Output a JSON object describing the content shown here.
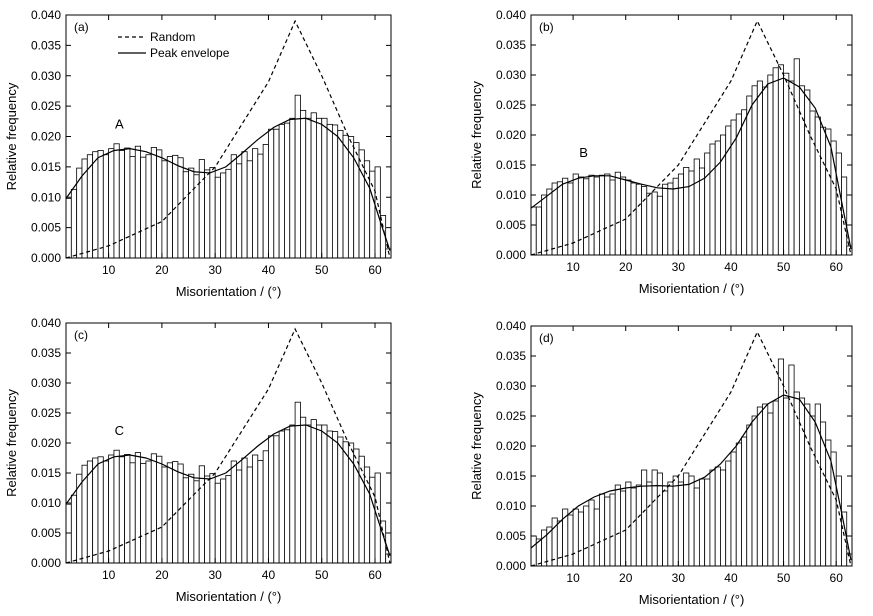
{
  "chart_data": [
    {
      "panel_label": "(a)",
      "type": "bar",
      "xlabel": "Misorientation / (°)",
      "ylabel": "Relative frequency",
      "xlim": [
        2,
        63
      ],
      "ylim": [
        0,
        0.04
      ],
      "xticks": [
        10,
        20,
        30,
        40,
        50,
        60
      ],
      "yticks": [
        "0.000",
        "0.005",
        "0.010",
        "0.015",
        "0.020",
        "0.025",
        "0.030",
        "0.035",
        "0.040"
      ],
      "annotation": {
        "text": "A",
        "x": 12,
        "y": 0.0213
      },
      "legend": {
        "placement": "top-left",
        "entries": [
          {
            "label": "Random",
            "style": "dashed"
          },
          {
            "label": "Peak envelope",
            "style": "solid"
          }
        ]
      },
      "bin_width": 1,
      "bin_start": 2.5,
      "values": [
        0.0098,
        0.0113,
        0.0148,
        0.0163,
        0.017,
        0.0175,
        0.0177,
        0.017,
        0.018,
        0.0188,
        0.0177,
        0.0181,
        0.0167,
        0.0184,
        0.0166,
        0.017,
        0.0182,
        0.0178,
        0.016,
        0.0167,
        0.0169,
        0.0165,
        0.0142,
        0.0148,
        0.0137,
        0.0162,
        0.0145,
        0.0149,
        0.0133,
        0.014,
        0.0146,
        0.017,
        0.0155,
        0.0175,
        0.016,
        0.018,
        0.0171,
        0.0187,
        0.0212,
        0.0212,
        0.022,
        0.0222,
        0.023,
        0.0268,
        0.0243,
        0.023,
        0.0239,
        0.023,
        0.023,
        0.022,
        0.0219,
        0.021,
        0.0202,
        0.02,
        0.019,
        0.0178,
        0.016,
        0.0143,
        0.015,
        0.007,
        0.0015
      ],
      "series": [
        {
          "name": "Random",
          "style": "dashed",
          "x": [
            2,
            10,
            20,
            30,
            40,
            45,
            50,
            55,
            60,
            62.8
          ],
          "y": [
            0.0,
            0.002,
            0.006,
            0.015,
            0.029,
            0.039,
            0.03,
            0.02,
            0.011,
            0.0
          ]
        },
        {
          "name": "Peak envelope",
          "style": "solid",
          "x": [
            2,
            5,
            8,
            11,
            14,
            17,
            20,
            23,
            26,
            29,
            32,
            35,
            38,
            41,
            44,
            47,
            50,
            53,
            56,
            59,
            61,
            62.8
          ],
          "y": [
            0.0098,
            0.0135,
            0.0165,
            0.0177,
            0.018,
            0.0175,
            0.0165,
            0.0152,
            0.0142,
            0.014,
            0.015,
            0.0172,
            0.0195,
            0.0215,
            0.0228,
            0.023,
            0.022,
            0.02,
            0.0165,
            0.0115,
            0.006,
            0.0012
          ]
        }
      ]
    },
    {
      "panel_label": "(b)",
      "type": "bar",
      "xlabel": "Misorientation / (°)",
      "ylabel": "Relative frequency",
      "xlim": [
        2,
        63
      ],
      "ylim": [
        0,
        0.04
      ],
      "xticks": [
        10,
        20,
        30,
        40,
        50,
        60
      ],
      "yticks": [
        "0.000",
        "0.005",
        "0.010",
        "0.015",
        "0.020",
        "0.025",
        "0.030",
        "0.035",
        "0.040"
      ],
      "annotation": {
        "text": "B",
        "x": 12,
        "y": 0.0163
      },
      "bin_width": 1,
      "bin_start": 2.5,
      "values": [
        0.008,
        0.008,
        0.01,
        0.011,
        0.012,
        0.0122,
        0.0128,
        0.012,
        0.0135,
        0.013,
        0.0127,
        0.0133,
        0.013,
        0.0133,
        0.0135,
        0.0125,
        0.0138,
        0.013,
        0.0125,
        0.012,
        0.0118,
        0.0114,
        0.0103,
        0.0105,
        0.0098,
        0.0118,
        0.012,
        0.0128,
        0.0135,
        0.0146,
        0.014,
        0.016,
        0.0145,
        0.017,
        0.0185,
        0.019,
        0.02,
        0.0215,
        0.0225,
        0.0235,
        0.0242,
        0.0265,
        0.0282,
        0.029,
        0.028,
        0.03,
        0.0312,
        0.0317,
        0.0303,
        0.029,
        0.0327,
        0.0282,
        0.0275,
        0.024,
        0.023,
        0.0213,
        0.021,
        0.019,
        0.017,
        0.013,
        0.0015
      ],
      "series": [
        {
          "name": "Random",
          "style": "dashed",
          "x": [
            2,
            10,
            20,
            30,
            40,
            45,
            50,
            55,
            60,
            62.8
          ],
          "y": [
            0.0,
            0.002,
            0.006,
            0.015,
            0.029,
            0.039,
            0.03,
            0.02,
            0.011,
            0.0
          ]
        },
        {
          "name": "Peak envelope",
          "style": "solid",
          "x": [
            2,
            5,
            8,
            11,
            14,
            17,
            20,
            23,
            26,
            29,
            32,
            35,
            38,
            41,
            44,
            47,
            50,
            53,
            56,
            59,
            61,
            62.8
          ],
          "y": [
            0.0078,
            0.0098,
            0.0118,
            0.0128,
            0.0132,
            0.0132,
            0.0125,
            0.0118,
            0.0112,
            0.011,
            0.0114,
            0.0128,
            0.0155,
            0.0195,
            0.025,
            0.0285,
            0.0295,
            0.028,
            0.0245,
            0.018,
            0.009,
            0.001
          ]
        }
      ]
    },
    {
      "panel_label": "(c)",
      "type": "bar",
      "xlabel": "Misorientation / (°)",
      "ylabel": "Relative frequency",
      "xlim": [
        2,
        63
      ],
      "ylim": [
        0,
        0.04
      ],
      "xticks": [
        10,
        20,
        30,
        40,
        50,
        60
      ],
      "yticks": [
        "0.000",
        "0.005",
        "0.010",
        "0.015",
        "0.020",
        "0.025",
        "0.030",
        "0.035",
        "0.040"
      ],
      "annotation": {
        "text": "C",
        "x": 12,
        "y": 0.0213
      },
      "bin_width": 1,
      "bin_start": 2.5,
      "values": [
        0.0098,
        0.0113,
        0.0148,
        0.0163,
        0.017,
        0.0175,
        0.0177,
        0.017,
        0.018,
        0.0188,
        0.0177,
        0.0181,
        0.0167,
        0.0184,
        0.0166,
        0.017,
        0.0182,
        0.0178,
        0.016,
        0.0167,
        0.0169,
        0.0165,
        0.0142,
        0.0148,
        0.0137,
        0.0162,
        0.0145,
        0.0149,
        0.0133,
        0.014,
        0.0146,
        0.017,
        0.0155,
        0.0175,
        0.016,
        0.018,
        0.0171,
        0.0187,
        0.0212,
        0.0212,
        0.022,
        0.0222,
        0.023,
        0.0268,
        0.0243,
        0.023,
        0.0239,
        0.023,
        0.023,
        0.022,
        0.0219,
        0.021,
        0.0202,
        0.02,
        0.019,
        0.0178,
        0.016,
        0.0143,
        0.015,
        0.007,
        0.0015
      ],
      "series": [
        {
          "name": "Random",
          "style": "dashed",
          "x": [
            2,
            10,
            20,
            30,
            40,
            45,
            50,
            55,
            60,
            62.8
          ],
          "y": [
            0.0,
            0.002,
            0.006,
            0.015,
            0.029,
            0.039,
            0.03,
            0.02,
            0.011,
            0.0
          ]
        },
        {
          "name": "Peak envelope",
          "style": "solid",
          "x": [
            2,
            5,
            8,
            11,
            14,
            17,
            20,
            23,
            26,
            29,
            32,
            35,
            38,
            41,
            44,
            47,
            50,
            53,
            56,
            59,
            61,
            62.8
          ],
          "y": [
            0.0098,
            0.0135,
            0.0165,
            0.0177,
            0.018,
            0.0175,
            0.0165,
            0.0152,
            0.0142,
            0.014,
            0.015,
            0.0172,
            0.0195,
            0.0215,
            0.0228,
            0.023,
            0.022,
            0.02,
            0.0165,
            0.0115,
            0.006,
            0.0012
          ]
        }
      ]
    },
    {
      "panel_label": "(d)",
      "type": "bar",
      "xlabel": "Misorientation / (°)",
      "ylabel": "Relative frequency",
      "xlim": [
        2,
        63
      ],
      "ylim": [
        0,
        0.04
      ],
      "xticks": [
        10,
        20,
        30,
        40,
        50,
        60
      ],
      "yticks": [
        "0.000",
        "0.005",
        "0.010",
        "0.015",
        "0.020",
        "0.025",
        "0.030",
        "0.035",
        "0.040"
      ],
      "bin_width": 1,
      "bin_start": 2.5,
      "values": [
        0.005,
        0.0045,
        0.006,
        0.0065,
        0.008,
        0.0075,
        0.0095,
        0.0085,
        0.0095,
        0.009,
        0.01,
        0.011,
        0.0095,
        0.012,
        0.0115,
        0.012,
        0.0135,
        0.0125,
        0.014,
        0.013,
        0.0135,
        0.016,
        0.014,
        0.016,
        0.0155,
        0.0125,
        0.014,
        0.015,
        0.014,
        0.0155,
        0.015,
        0.013,
        0.0145,
        0.0145,
        0.016,
        0.0165,
        0.016,
        0.0175,
        0.019,
        0.0205,
        0.0215,
        0.0235,
        0.025,
        0.0265,
        0.027,
        0.0255,
        0.0275,
        0.0345,
        0.028,
        0.0335,
        0.029,
        0.028,
        0.027,
        0.025,
        0.027,
        0.024,
        0.021,
        0.019,
        0.015,
        0.009,
        0.002
      ],
      "series": [
        {
          "name": "Random",
          "style": "dashed",
          "x": [
            2,
            10,
            20,
            30,
            40,
            45,
            50,
            55,
            60,
            62.8
          ],
          "y": [
            0.0,
            0.002,
            0.006,
            0.015,
            0.029,
            0.039,
            0.03,
            0.02,
            0.011,
            0.0
          ]
        },
        {
          "name": "Peak envelope",
          "style": "solid",
          "x": [
            2,
            5,
            8,
            11,
            14,
            17,
            20,
            23,
            26,
            29,
            32,
            35,
            38,
            41,
            44,
            47,
            50,
            53,
            56,
            59,
            61,
            62.8
          ],
          "y": [
            0.003,
            0.0052,
            0.0078,
            0.01,
            0.0115,
            0.0125,
            0.013,
            0.0133,
            0.0134,
            0.0133,
            0.0136,
            0.0148,
            0.017,
            0.02,
            0.024,
            0.027,
            0.0285,
            0.0278,
            0.024,
            0.0175,
            0.009,
            0.001
          ]
        }
      ]
    }
  ]
}
